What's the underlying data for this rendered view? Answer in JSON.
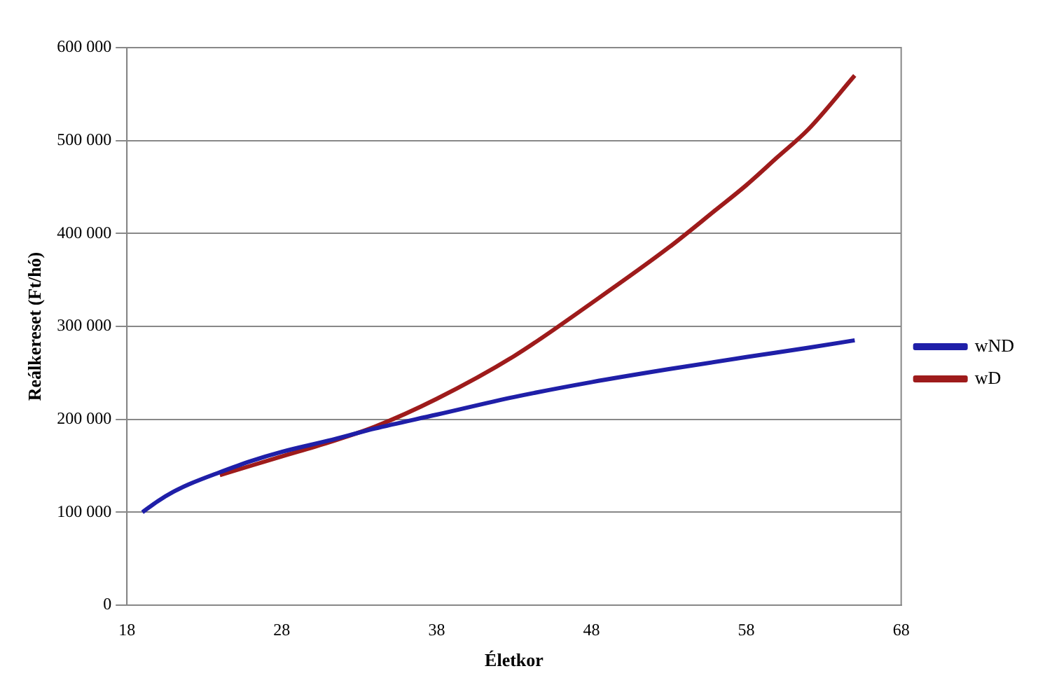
{
  "chart_data": {
    "type": "line",
    "xlabel": "Életkor",
    "ylabel": "Reálkereset (Ft/hó)",
    "xlim": [
      18,
      68
    ],
    "xticks": [
      18,
      28,
      38,
      48,
      58,
      68
    ],
    "ylim": [
      0,
      600000
    ],
    "yticks": [
      {
        "value": 0,
        "label": "0"
      },
      {
        "value": 100000,
        "label": "100 000"
      },
      {
        "value": 200000,
        "label": "200 000"
      },
      {
        "value": 300000,
        "label": "300 000"
      },
      {
        "value": 400000,
        "label": "400 000"
      },
      {
        "value": 500000,
        "label": "500 000"
      },
      {
        "value": 600000,
        "label": "600 000"
      }
    ],
    "grid": "y",
    "legend": "right",
    "marker": "none",
    "line_style": "solid",
    "series": [
      {
        "name": "wND",
        "color": "#1f1fa8",
        "x": [
          19,
          20,
          21,
          22,
          24,
          26,
          28,
          31,
          34,
          38,
          43,
          48,
          53,
          58,
          62,
          65
        ],
        "values": [
          100000,
          112000,
          122000,
          130000,
          143000,
          155000,
          165000,
          177000,
          190000,
          205000,
          224000,
          240000,
          254000,
          267000,
          277000,
          285000
        ]
      },
      {
        "name": "wD",
        "color": "#9e1b1b",
        "x": [
          24,
          26,
          28,
          31,
          34,
          38,
          43,
          48,
          53,
          56,
          58,
          60,
          62,
          65
        ],
        "values": [
          140000,
          150000,
          160000,
          175000,
          192000,
          222000,
          268000,
          325000,
          385000,
          425000,
          452000,
          482000,
          512000,
          570000
        ]
      }
    ]
  }
}
